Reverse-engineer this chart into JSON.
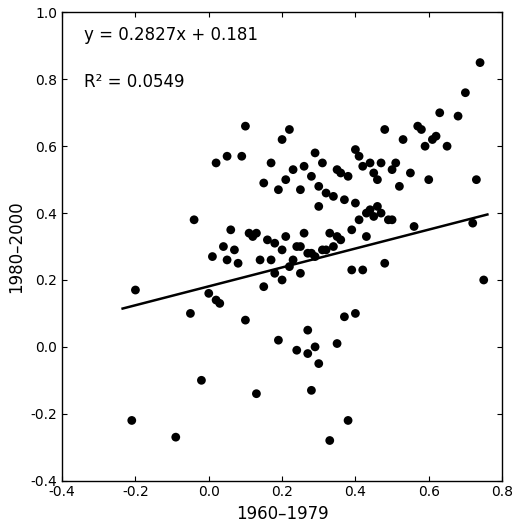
{
  "slope": 0.2827,
  "intercept": 0.181,
  "r_squared": 0.0549,
  "equation_text": "y = 0.2827x + 0.181",
  "r2_text": "R² = 0.0549",
  "xlabel": "1960–1979",
  "ylabel": "1980–2000",
  "xlim": [
    -0.4,
    0.8
  ],
  "ylim": [
    -0.4,
    1.0
  ],
  "xticks": [
    -0.4,
    -0.2,
    0.0,
    0.2,
    0.4,
    0.6,
    0.8
  ],
  "yticks": [
    -0.4,
    -0.2,
    0.0,
    0.2,
    0.4,
    0.6,
    0.8,
    1.0
  ],
  "line_x_start": -0.235,
  "line_x_end": 0.76,
  "scatter_x": [
    -0.21,
    -0.2,
    -0.09,
    -0.05,
    -0.04,
    -0.02,
    0.0,
    0.01,
    0.02,
    0.02,
    0.03,
    0.04,
    0.05,
    0.05,
    0.06,
    0.07,
    0.08,
    0.09,
    0.1,
    0.1,
    0.11,
    0.12,
    0.13,
    0.13,
    0.14,
    0.15,
    0.15,
    0.16,
    0.17,
    0.17,
    0.18,
    0.18,
    0.19,
    0.19,
    0.2,
    0.2,
    0.2,
    0.21,
    0.21,
    0.22,
    0.22,
    0.23,
    0.23,
    0.24,
    0.24,
    0.25,
    0.25,
    0.25,
    0.26,
    0.26,
    0.27,
    0.27,
    0.27,
    0.28,
    0.28,
    0.28,
    0.29,
    0.29,
    0.29,
    0.3,
    0.3,
    0.3,
    0.31,
    0.31,
    0.32,
    0.32,
    0.33,
    0.33,
    0.34,
    0.34,
    0.35,
    0.35,
    0.35,
    0.36,
    0.36,
    0.37,
    0.37,
    0.38,
    0.38,
    0.39,
    0.39,
    0.4,
    0.4,
    0.4,
    0.41,
    0.41,
    0.42,
    0.42,
    0.43,
    0.43,
    0.44,
    0.44,
    0.45,
    0.45,
    0.46,
    0.46,
    0.47,
    0.47,
    0.48,
    0.48,
    0.49,
    0.5,
    0.5,
    0.51,
    0.52,
    0.53,
    0.55,
    0.56,
    0.57,
    0.58,
    0.59,
    0.6,
    0.61,
    0.62,
    0.63,
    0.65,
    0.68,
    0.7,
    0.72,
    0.73,
    0.74,
    0.75
  ],
  "scatter_y": [
    -0.22,
    0.17,
    -0.27,
    0.1,
    0.38,
    -0.1,
    0.16,
    0.27,
    0.55,
    0.14,
    0.13,
    0.3,
    0.57,
    0.26,
    0.35,
    0.29,
    0.25,
    0.57,
    0.66,
    0.08,
    0.34,
    0.33,
    -0.14,
    0.34,
    0.26,
    0.18,
    0.49,
    0.32,
    0.26,
    0.55,
    0.22,
    0.31,
    0.02,
    0.47,
    0.62,
    0.29,
    0.2,
    0.33,
    0.5,
    0.24,
    0.65,
    0.53,
    0.26,
    0.3,
    -0.01,
    0.47,
    0.3,
    0.22,
    0.54,
    0.34,
    0.28,
    0.05,
    -0.02,
    0.51,
    0.28,
    -0.13,
    0.27,
    0.58,
    0.0,
    0.42,
    0.48,
    -0.05,
    0.55,
    0.29,
    0.46,
    0.29,
    0.34,
    -0.28,
    0.3,
    0.45,
    0.53,
    0.33,
    0.01,
    0.52,
    0.32,
    0.44,
    0.09,
    0.51,
    -0.22,
    0.23,
    0.35,
    0.59,
    0.43,
    0.1,
    0.38,
    0.57,
    0.54,
    0.23,
    0.4,
    0.33,
    0.55,
    0.41,
    0.52,
    0.39,
    0.5,
    0.42,
    0.55,
    0.4,
    0.25,
    0.65,
    0.38,
    0.53,
    0.38,
    0.55,
    0.48,
    0.62,
    0.52,
    0.36,
    0.66,
    0.65,
    0.6,
    0.5,
    0.62,
    0.63,
    0.7,
    0.6,
    0.69,
    0.76,
    0.37,
    0.5,
    0.85,
    0.2
  ],
  "line_color": "#000000",
  "dot_color": "#000000",
  "dot_size": 40,
  "background_color": "#ffffff",
  "font_size_label": 12,
  "font_size_annotation": 12
}
